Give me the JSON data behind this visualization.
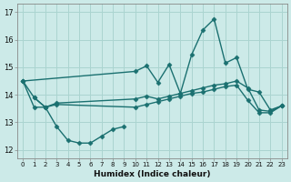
{
  "xlabel": "Humidex (Indice chaleur)",
  "background_color": "#cceae8",
  "grid_color": "#aad4d0",
  "line_color": "#1a7070",
  "xlim": [
    -0.5,
    23.5
  ],
  "ylim": [
    11.7,
    17.3
  ],
  "yticks": [
    12,
    13,
    14,
    15,
    16,
    17
  ],
  "xticks": [
    0,
    1,
    2,
    3,
    4,
    5,
    6,
    7,
    8,
    9,
    10,
    11,
    12,
    13,
    14,
    15,
    16,
    17,
    18,
    19,
    20,
    21,
    22,
    23
  ],
  "series_upper_x": [
    0,
    10,
    11,
    12,
    13,
    14,
    15,
    16,
    17,
    18,
    19,
    20,
    21,
    22,
    23
  ],
  "series_upper_y": [
    14.5,
    14.85,
    15.05,
    14.45,
    15.1,
    14.05,
    15.45,
    16.35,
    16.75,
    15.15,
    15.35,
    14.2,
    14.1,
    13.45,
    13.6
  ],
  "series_trend_x": [
    0,
    1,
    2,
    3,
    10,
    11,
    12,
    13,
    14,
    15,
    16,
    17,
    18,
    19,
    20,
    21,
    22,
    23
  ],
  "series_trend_y": [
    14.5,
    13.9,
    13.55,
    13.7,
    13.85,
    13.95,
    13.85,
    13.95,
    14.05,
    14.15,
    14.25,
    14.35,
    14.4,
    14.5,
    14.25,
    13.45,
    13.4,
    13.6
  ],
  "series_flat_x": [
    0,
    1,
    2,
    3,
    10,
    11,
    12,
    13,
    14,
    15,
    16,
    17,
    18,
    19,
    20,
    21,
    22,
    23
  ],
  "series_flat_y": [
    14.5,
    13.55,
    13.55,
    13.65,
    13.55,
    13.65,
    13.75,
    13.85,
    13.95,
    14.05,
    14.1,
    14.2,
    14.3,
    14.35,
    13.8,
    13.35,
    13.35,
    13.6
  ],
  "series_dip_x": [
    1,
    2,
    3,
    4,
    5,
    6,
    7,
    8,
    9
  ],
  "series_dip_y": [
    13.9,
    13.55,
    12.85,
    12.35,
    12.25,
    12.25,
    12.5,
    12.75,
    12.85
  ],
  "markersize": 2.5,
  "linewidth": 1.0
}
